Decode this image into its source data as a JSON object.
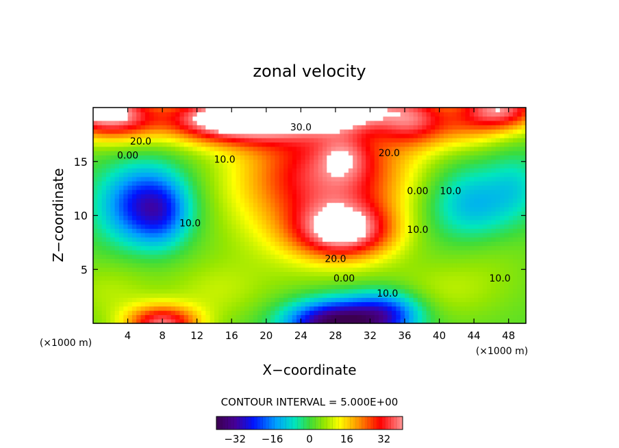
{
  "chart_data": {
    "type": "heatmap",
    "title": "zonal velocity",
    "xlabel": "X−coordinate",
    "ylabel": "Z−coordinate",
    "x_unit_left": "(×1000 m)",
    "x_unit_right": "(×1000 m)",
    "xlim": [
      0,
      50
    ],
    "ylim": [
      0,
      20
    ],
    "x_ticks": [
      "4",
      "8",
      "12",
      "16",
      "20",
      "24",
      "28",
      "32",
      "36",
      "40",
      "44",
      "48"
    ],
    "y_ticks": [
      "5",
      "10",
      "15"
    ],
    "contour_interval_text": "CONTOUR INTERVAL = 5.000E+00",
    "colorbar": {
      "range": [
        -40,
        40
      ],
      "tick_labels": [
        "−32",
        "−16",
        "0",
        "16",
        "32"
      ]
    },
    "contour_labels": [
      {
        "text": "30.0",
        "x": 24.0,
        "y": 18.2
      },
      {
        "text": "20.0",
        "x": 5.5,
        "y": 16.9
      },
      {
        "text": "0.00",
        "x": 4.0,
        "y": 15.6
      },
      {
        "text": "10.0",
        "x": 15.2,
        "y": 15.2
      },
      {
        "text": "20.0",
        "x": 34.2,
        "y": 15.8
      },
      {
        "text": "0.00",
        "x": 37.5,
        "y": 12.3
      },
      {
        "text": "10.0",
        "x": 41.3,
        "y": 12.3
      },
      {
        "text": "10.0",
        "x": 11.2,
        "y": 9.3
      },
      {
        "text": "10.0",
        "x": 37.5,
        "y": 8.7
      },
      {
        "text": "20.0",
        "x": 28.0,
        "y": 6.0
      },
      {
        "text": "0.00",
        "x": 29.0,
        "y": 4.2
      },
      {
        "text": "10.0",
        "x": 34.0,
        "y": 2.8
      },
      {
        "text": "10.0",
        "x": 47.0,
        "y": 4.2
      }
    ],
    "features": [
      {
        "x": 0,
        "y": 20,
        "amp": 36,
        "sx": 3.5,
        "sy": 1.8
      },
      {
        "x": 4,
        "y": 19,
        "amp": 18,
        "sx": 3,
        "sy": 1.5
      },
      {
        "x": 12,
        "y": 19,
        "amp": 18,
        "sx": 4,
        "sy": 1.5
      },
      {
        "x": 18,
        "y": 19,
        "amp": 40,
        "sx": 5,
        "sy": 1.6
      },
      {
        "x": 28,
        "y": 20,
        "amp": 42,
        "sx": 4.5,
        "sy": 1.4
      },
      {
        "x": 37,
        "y": 19,
        "amp": 26,
        "sx": 3,
        "sy": 1.8
      },
      {
        "x": 47,
        "y": 20,
        "amp": 36,
        "sx": 3.5,
        "sy": 1.5
      },
      {
        "x": 43,
        "y": 18,
        "amp": 10,
        "sx": 3,
        "sy": 1.5
      },
      {
        "x": 29,
        "y": 14,
        "amp": 26,
        "sx": 6,
        "sy": 3.8
      },
      {
        "x": 29,
        "y": 15.5,
        "amp": 10,
        "sx": 2,
        "sy": 1.5
      },
      {
        "x": 29,
        "y": 8.5,
        "amp": 34,
        "sx": 4,
        "sy": 1.8
      },
      {
        "x": 22,
        "y": 11,
        "amp": 8,
        "sx": 6,
        "sy": 5
      },
      {
        "x": 22,
        "y": 14,
        "amp": 6,
        "sx": 6,
        "sy": 3
      },
      {
        "x": 6,
        "y": 11,
        "amp": -28,
        "sx": 3.5,
        "sy": 2.5
      },
      {
        "x": 8,
        "y": 10,
        "amp": -8,
        "sx": 2,
        "sy": 2
      },
      {
        "x": 44,
        "y": 11,
        "amp": -16,
        "sx": 4,
        "sy": 2.5
      },
      {
        "x": 49,
        "y": 13,
        "amp": -6,
        "sx": 2,
        "sy": 2
      },
      {
        "x": 28,
        "y": 0,
        "amp": -42,
        "sx": 4,
        "sy": 1.5
      },
      {
        "x": 34,
        "y": 1,
        "amp": -22,
        "sx": 3,
        "sy": 1.5
      },
      {
        "x": 8,
        "y": 0,
        "amp": 34,
        "sx": 3,
        "sy": 1.2
      },
      {
        "x": 2,
        "y": 3,
        "amp": 6,
        "sx": 4,
        "sy": 2
      },
      {
        "x": 14,
        "y": 3,
        "amp": 6,
        "sx": 4,
        "sy": 2
      },
      {
        "x": 40,
        "y": 3,
        "amp": 6,
        "sx": 5,
        "sy": 2
      },
      {
        "x": 46,
        "y": 7,
        "amp": 4,
        "sx": 4,
        "sy": 3
      }
    ]
  }
}
